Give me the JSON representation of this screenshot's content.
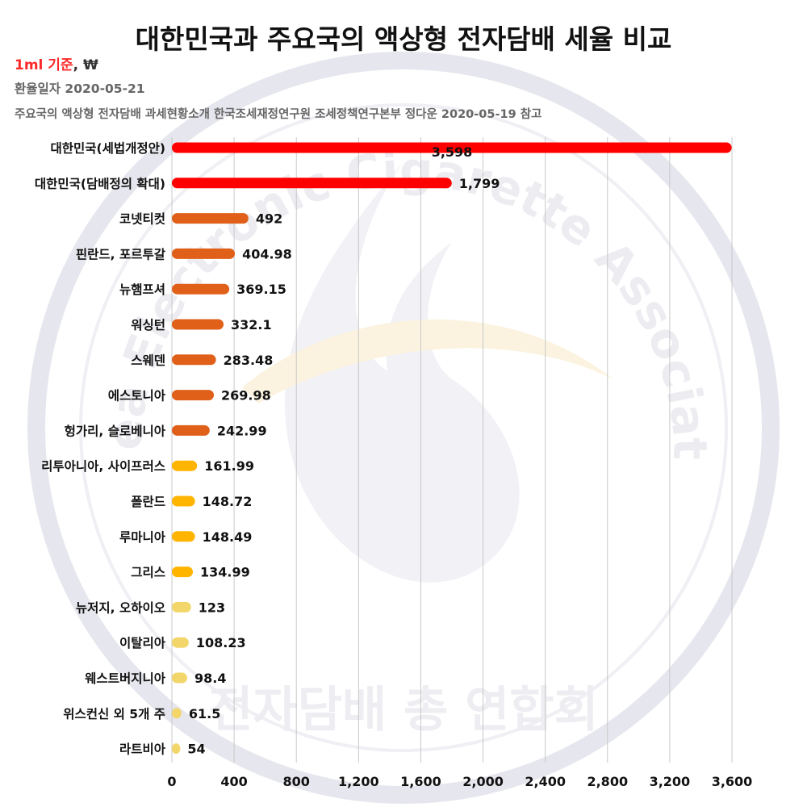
{
  "title": "대한민국과 주요국의 액상형 전자담배 세율 비교",
  "unit_basis": "1ml 기준",
  "unit_sep": ", ",
  "unit_currency": "₩",
  "exchange_date": "환율일자 2020-05-21",
  "source_note": "주요국의 액상형 전자담배 과세현황소개 한국조세재정연구원 조세정책연구본부 정다운 2020-05-19 참고",
  "watermark": {
    "ring_text": "Korea Electronic Cigarette Association",
    "bottom_text": "전자담배 총 연합회"
  },
  "colors": {
    "red": "#ff0000",
    "orange": "#e0601a",
    "amber": "#ffb400",
    "yellow": "#f2d66a",
    "grid": "#c8c8c8"
  },
  "chart_data": {
    "type": "bar",
    "orientation": "horizontal",
    "categories": [
      "대한민국(세법개정안)",
      "대한민국(담배정의 확대)",
      "코넷티컷",
      "핀란드, 포르투갈",
      "뉴햄프셔",
      "워싱턴",
      "스웨덴",
      "에스토니아",
      "헝가리, 슬로베니아",
      "리투아니아, 사이프러스",
      "폴란드",
      "루마니아",
      "그리스",
      "뉴저지, 오하이오",
      "이탈리아",
      "웨스트버지니아",
      "위스컨신 외 5개 주",
      "라트비아"
    ],
    "values": [
      3598,
      1799,
      492,
      404.98,
      369.15,
      332.1,
      283.48,
      269.98,
      242.99,
      161.99,
      148.72,
      148.49,
      134.99,
      123,
      108.23,
      98.4,
      61.5,
      54
    ],
    "value_labels": [
      "3,598",
      "1,799",
      "492",
      "404.98",
      "369.15",
      "332.1",
      "283.48",
      "269.98",
      "242.99",
      "161.99",
      "148.72",
      "148.49",
      "134.99",
      "123",
      "108.23",
      "98.4",
      "61.5",
      "54"
    ],
    "bar_colors": [
      "red",
      "red",
      "orange",
      "orange",
      "orange",
      "orange",
      "orange",
      "orange",
      "orange",
      "amber",
      "amber",
      "amber",
      "amber",
      "yellow",
      "yellow",
      "yellow",
      "yellow",
      "yellow"
    ],
    "xlim": [
      0,
      3600
    ],
    "x_ticks": [
      0,
      400,
      800,
      1200,
      1600,
      2000,
      2400,
      2800,
      3200,
      3600
    ],
    "x_tick_labels": [
      "0",
      "400",
      "800",
      "1,200",
      "1,600",
      "2,000",
      "2,400",
      "2,800",
      "3,200",
      "3,600"
    ],
    "grid": "vertical",
    "legend": "none"
  }
}
